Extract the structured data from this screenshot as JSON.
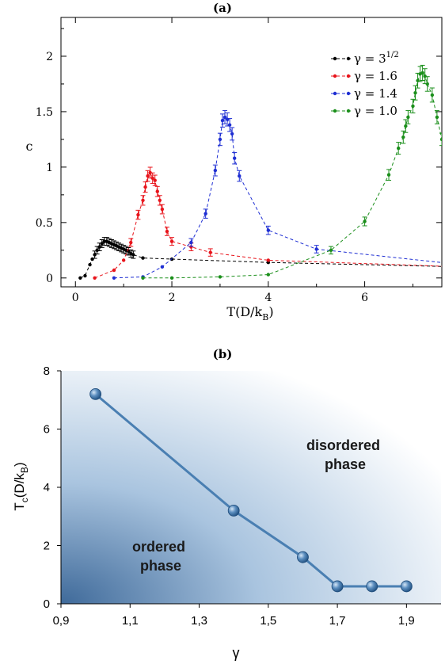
{
  "chart_data": [
    {
      "panel_label": "(a)",
      "type": "line",
      "xlabel": "T(D/k",
      "xlabel_sub": "B",
      "xlabel_close": ")",
      "ylabel": "c",
      "xlim": [
        -0.3,
        7.6
      ],
      "ylim": [
        -0.08,
        2.35
      ],
      "xticks": [
        0,
        2,
        4,
        6
      ],
      "yticks": [
        0,
        0.5,
        1,
        1.5,
        2
      ],
      "ytick_labels": [
        "0",
        "0.5",
        "1",
        "1.5",
        "2"
      ],
      "legend_position": "top-right",
      "series": [
        {
          "name": "γ = 3",
          "name_sup": "1/2",
          "color": "#000000",
          "x": [
            0.1,
            0.2,
            0.3,
            0.35,
            0.4,
            0.45,
            0.5,
            0.55,
            0.6,
            0.65,
            0.7,
            0.75,
            0.8,
            0.85,
            0.9,
            0.95,
            1.0,
            1.05,
            1.1,
            1.15,
            1.2,
            1.4,
            2.0,
            4.0,
            8.0
          ],
          "y": [
            0.0,
            0.02,
            0.12,
            0.17,
            0.21,
            0.25,
            0.28,
            0.31,
            0.33,
            0.33,
            0.32,
            0.31,
            0.3,
            0.29,
            0.28,
            0.27,
            0.26,
            0.25,
            0.24,
            0.22,
            0.21,
            0.18,
            0.17,
            0.14,
            0.1
          ]
        },
        {
          "name": "γ = 1.6",
          "color": "#e8141b",
          "x": [
            0.4,
            0.8,
            1.0,
            1.15,
            1.3,
            1.4,
            1.45,
            1.5,
            1.55,
            1.6,
            1.65,
            1.7,
            1.75,
            1.8,
            1.9,
            2.0,
            2.4,
            2.8,
            4.0,
            8.0
          ],
          "y": [
            0.0,
            0.07,
            0.16,
            0.32,
            0.57,
            0.7,
            0.82,
            0.92,
            0.95,
            0.9,
            0.88,
            0.78,
            0.7,
            0.62,
            0.42,
            0.33,
            0.28,
            0.23,
            0.16,
            0.1
          ]
        },
        {
          "name": "γ = 1.4",
          "color": "#1f2fd3",
          "x": [
            0.8,
            1.4,
            1.8,
            2.4,
            2.7,
            2.9,
            3.0,
            3.05,
            3.1,
            3.15,
            3.2,
            3.25,
            3.3,
            3.4,
            4.0,
            5.0,
            8.0
          ],
          "y": [
            0.0,
            0.01,
            0.1,
            0.32,
            0.58,
            0.97,
            1.25,
            1.42,
            1.45,
            1.43,
            1.38,
            1.3,
            1.08,
            0.92,
            0.43,
            0.26,
            0.12
          ]
        },
        {
          "name": "γ = 1.0",
          "color": "#1b8f1b",
          "x": [
            1.4,
            2.0,
            3.0,
            4.0,
            5.3,
            6.0,
            6.5,
            6.7,
            6.8,
            6.85,
            6.9,
            7.0,
            7.05,
            7.1,
            7.15,
            7.2,
            7.25,
            7.3,
            7.4,
            7.5,
            7.6
          ],
          "y": [
            0.0,
            0.0,
            0.01,
            0.03,
            0.25,
            0.51,
            0.93,
            1.17,
            1.27,
            1.37,
            1.45,
            1.55,
            1.67,
            1.78,
            1.84,
            1.85,
            1.82,
            1.75,
            1.65,
            1.45,
            1.25
          ]
        }
      ]
    },
    {
      "panel_label": "(b)",
      "type": "line",
      "xlabel": "γ",
      "ylabel": "T",
      "ylabel_sub": "c",
      "ylabel_rest": "(D/k",
      "ylabel_sub2": "B",
      "ylabel_close": ")",
      "xlim": [
        0.9,
        2.0
      ],
      "ylim": [
        0,
        8
      ],
      "xticks": [
        0.9,
        1.1,
        1.3,
        1.5,
        1.7,
        1.9
      ],
      "xtick_labels": [
        "0,9",
        "1,1",
        "1,3",
        "1,5",
        "1,7",
        "1,9"
      ],
      "yticks": [
        0,
        2,
        4,
        6,
        8
      ],
      "series": [
        {
          "color": "#4a7fb2",
          "x": [
            1.0,
            1.4,
            1.6,
            1.7,
            1.8,
            1.9
          ],
          "y": [
            7.2,
            3.2,
            1.6,
            0.6,
            0.6,
            0.6
          ]
        }
      ],
      "annotations": [
        {
          "lines": [
            "disordered",
            "phase"
          ]
        },
        {
          "lines": [
            "ordered",
            "phase"
          ]
        }
      ]
    }
  ]
}
